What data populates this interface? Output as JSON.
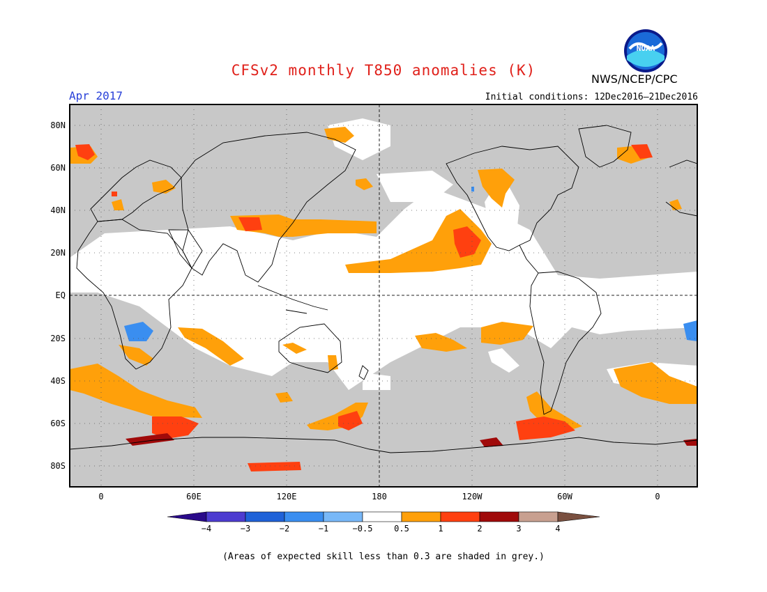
{
  "header": {
    "title": "CFSv2 monthly T850 anomalies (K)",
    "agency": "NWS/NCEP/CPC",
    "logo_text": "NOAA",
    "valid_month": "Apr 2017",
    "initial_conditions": "Initial conditions: 12Dec2016–21Dec2016"
  },
  "map": {
    "lat_labels": [
      "80N",
      "60N",
      "40N",
      "20N",
      "EQ",
      "20S",
      "40S",
      "60S",
      "80S"
    ],
    "lon_labels": [
      "0",
      "60E",
      "120E",
      "180",
      "120W",
      "60W",
      "0"
    ],
    "colors": {
      "low_skill_grey": "#c8c8c8",
      "background": "#ffffff",
      "coastline": "#000000"
    }
  },
  "legend": {
    "tick_labels": [
      "−4",
      "−3",
      "−2",
      "−1",
      "−0.5",
      "0.5",
      "1",
      "2",
      "3",
      "4"
    ],
    "colors": [
      "#2a0a8a",
      "#4d3cd0",
      "#1f62d8",
      "#3a8ef0",
      "#78b8f8",
      "#ffffff",
      "#ffa00a",
      "#ff4010",
      "#a00a0a",
      "#c8a090",
      "#7a5040"
    ]
  },
  "footnote": "(Areas of expected skill less than 0.3 are shaded in grey.)"
}
